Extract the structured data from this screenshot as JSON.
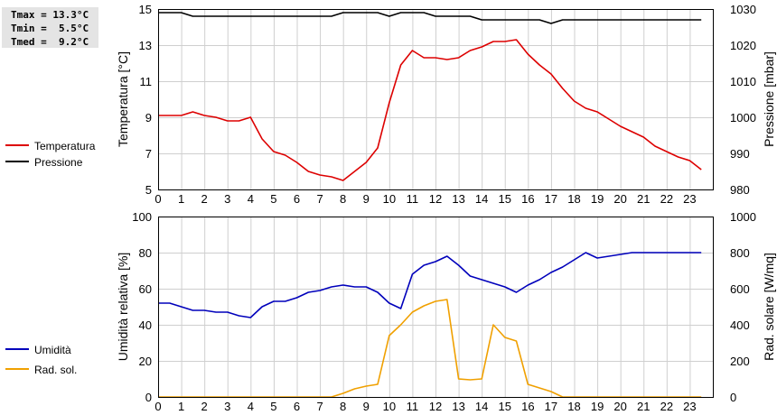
{
  "stats": {
    "tmax": "Tmax = 13.3°C",
    "tmin": "Tmin =  5.5°C",
    "tmed": "Tmed =  9.2°C"
  },
  "colors": {
    "temperature": "#dd0000",
    "pressure": "#000000",
    "humidity": "#0000bb",
    "radiation": "#f0a000",
    "grid": "#cfcfcf"
  },
  "chart_data": [
    {
      "type": "line",
      "x_ticks": [
        "0",
        "1",
        "2",
        "3",
        "4",
        "5",
        "6",
        "7",
        "8",
        "9",
        "10",
        "11",
        "12",
        "13",
        "14",
        "15",
        "16",
        "17",
        "18",
        "19",
        "20",
        "21",
        "22",
        "23"
      ],
      "xlim": [
        0,
        24
      ],
      "ylabel": "Temperatura [°C]",
      "ylim": [
        5,
        15
      ],
      "y_ticks": [
        "5",
        "7",
        "9",
        "11",
        "13",
        "15"
      ],
      "y2label": "Pressione [mbar]",
      "y2lim": [
        980,
        1030
      ],
      "y2_ticks": [
        "980",
        "990",
        "1000",
        "1010",
        "1020",
        "1030"
      ],
      "grid": true,
      "legend_position": "left",
      "series": [
        {
          "name": "Temperatura",
          "axis": "left",
          "points": [
            [
              0,
              9.1
            ],
            [
              1,
              9.1
            ],
            [
              1.5,
              9.3
            ],
            [
              2,
              9.1
            ],
            [
              2.5,
              9.0
            ],
            [
              3,
              8.8
            ],
            [
              3.5,
              8.8
            ],
            [
              4,
              9.0
            ],
            [
              4.5,
              7.8
            ],
            [
              5,
              7.1
            ],
            [
              5.5,
              6.9
            ],
            [
              6,
              6.5
            ],
            [
              6.5,
              6.0
            ],
            [
              7,
              5.8
            ],
            [
              7.5,
              5.7
            ],
            [
              8,
              5.5
            ],
            [
              8.5,
              6.0
            ],
            [
              9,
              6.5
            ],
            [
              9.5,
              7.3
            ],
            [
              10,
              9.8
            ],
            [
              10.5,
              11.9
            ],
            [
              11,
              12.7
            ],
            [
              11.5,
              12.3
            ],
            [
              12,
              12.3
            ],
            [
              12.5,
              12.2
            ],
            [
              13,
              12.3
            ],
            [
              13.5,
              12.7
            ],
            [
              14,
              12.9
            ],
            [
              14.5,
              13.2
            ],
            [
              15,
              13.2
            ],
            [
              15.5,
              13.3
            ],
            [
              16,
              12.5
            ],
            [
              16.5,
              11.9
            ],
            [
              17,
              11.4
            ],
            [
              17.5,
              10.6
            ],
            [
              18,
              9.9
            ],
            [
              18.5,
              9.5
            ],
            [
              19,
              9.3
            ],
            [
              19.5,
              8.9
            ],
            [
              20,
              8.5
            ],
            [
              20.5,
              8.2
            ],
            [
              21,
              7.9
            ],
            [
              21.5,
              7.4
            ],
            [
              22,
              7.1
            ],
            [
              22.5,
              6.8
            ],
            [
              23,
              6.6
            ],
            [
              23.5,
              6.1
            ]
          ]
        },
        {
          "name": "Pressione",
          "axis": "right",
          "points": [
            [
              0,
              1029
            ],
            [
              1,
              1029
            ],
            [
              1.5,
              1028
            ],
            [
              2,
              1028
            ],
            [
              3,
              1028
            ],
            [
              4,
              1028
            ],
            [
              5,
              1028
            ],
            [
              6,
              1028
            ],
            [
              7,
              1028
            ],
            [
              7.5,
              1028
            ],
            [
              8,
              1029
            ],
            [
              9,
              1029
            ],
            [
              9.5,
              1029
            ],
            [
              10,
              1028
            ],
            [
              10.5,
              1029
            ],
            [
              11,
              1029
            ],
            [
              11.5,
              1029
            ],
            [
              12,
              1028
            ],
            [
              13,
              1028
            ],
            [
              13.5,
              1028
            ],
            [
              14,
              1027
            ],
            [
              15,
              1027
            ],
            [
              16,
              1027
            ],
            [
              16.5,
              1027
            ],
            [
              17,
              1026
            ],
            [
              17.5,
              1027
            ],
            [
              18,
              1027
            ],
            [
              19,
              1027
            ],
            [
              20,
              1027
            ],
            [
              21,
              1027
            ],
            [
              22,
              1027
            ],
            [
              23,
              1027
            ],
            [
              23.5,
              1027
            ]
          ]
        }
      ]
    },
    {
      "type": "line",
      "x_ticks": [
        "0",
        "1",
        "2",
        "3",
        "4",
        "5",
        "6",
        "7",
        "8",
        "9",
        "10",
        "11",
        "12",
        "13",
        "14",
        "15",
        "16",
        "17",
        "18",
        "19",
        "20",
        "21",
        "22",
        "23"
      ],
      "xlim": [
        0,
        24
      ],
      "ylabel": "Umidità relativa [%]",
      "ylim": [
        0,
        100
      ],
      "y_ticks": [
        "0",
        "20",
        "40",
        "60",
        "80",
        "100"
      ],
      "y2label": "Rad. solare [W/mq]",
      "y2lim": [
        0,
        1000
      ],
      "y2_ticks": [
        "0",
        "200",
        "400",
        "600",
        "800",
        "1000"
      ],
      "grid": true,
      "legend_position": "left",
      "series": [
        {
          "name": "Umidità",
          "axis": "left",
          "points": [
            [
              0,
              52
            ],
            [
              0.5,
              52
            ],
            [
              1,
              50
            ],
            [
              1.5,
              48
            ],
            [
              2,
              48
            ],
            [
              2.5,
              47
            ],
            [
              3,
              47
            ],
            [
              3.5,
              45
            ],
            [
              4,
              44
            ],
            [
              4.5,
              50
            ],
            [
              5,
              53
            ],
            [
              5.5,
              53
            ],
            [
              6,
              55
            ],
            [
              6.5,
              58
            ],
            [
              7,
              59
            ],
            [
              7.5,
              61
            ],
            [
              8,
              62
            ],
            [
              8.5,
              61
            ],
            [
              9,
              61
            ],
            [
              9.5,
              58
            ],
            [
              10,
              52
            ],
            [
              10.5,
              49
            ],
            [
              11,
              68
            ],
            [
              11.5,
              73
            ],
            [
              12,
              75
            ],
            [
              12.5,
              78
            ],
            [
              13,
              73
            ],
            [
              13.5,
              67
            ],
            [
              14,
              65
            ],
            [
              14.5,
              63
            ],
            [
              15,
              61
            ],
            [
              15.5,
              58
            ],
            [
              16,
              62
            ],
            [
              16.5,
              65
            ],
            [
              17,
              69
            ],
            [
              17.5,
              72
            ],
            [
              18,
              76
            ],
            [
              18.5,
              80
            ],
            [
              19,
              77
            ],
            [
              19.5,
              78
            ],
            [
              20,
              79
            ],
            [
              20.5,
              80
            ],
            [
              21,
              80
            ],
            [
              22,
              80
            ],
            [
              23,
              80
            ],
            [
              23.5,
              80
            ]
          ]
        },
        {
          "name": "Rad. sol.",
          "axis": "right",
          "points": [
            [
              0,
              0
            ],
            [
              1,
              0
            ],
            [
              2,
              0
            ],
            [
              3,
              0
            ],
            [
              4,
              0
            ],
            [
              5,
              0
            ],
            [
              6,
              0
            ],
            [
              7,
              0
            ],
            [
              7.5,
              0
            ],
            [
              8,
              20
            ],
            [
              8.5,
              45
            ],
            [
              9,
              60
            ],
            [
              9.5,
              70
            ],
            [
              10,
              340
            ],
            [
              10.5,
              400
            ],
            [
              11,
              470
            ],
            [
              11.5,
              505
            ],
            [
              12,
              530
            ],
            [
              12.5,
              540
            ],
            [
              13,
              100
            ],
            [
              13.5,
              95
            ],
            [
              14,
              100
            ],
            [
              14.5,
              400
            ],
            [
              15,
              330
            ],
            [
              15.5,
              310
            ],
            [
              16,
              70
            ],
            [
              16.5,
              50
            ],
            [
              17,
              30
            ],
            [
              17.5,
              0
            ],
            [
              18,
              0
            ],
            [
              19,
              0
            ],
            [
              20,
              0
            ],
            [
              21,
              0
            ],
            [
              22,
              0
            ],
            [
              23,
              0
            ],
            [
              23.5,
              0
            ]
          ]
        }
      ]
    }
  ]
}
